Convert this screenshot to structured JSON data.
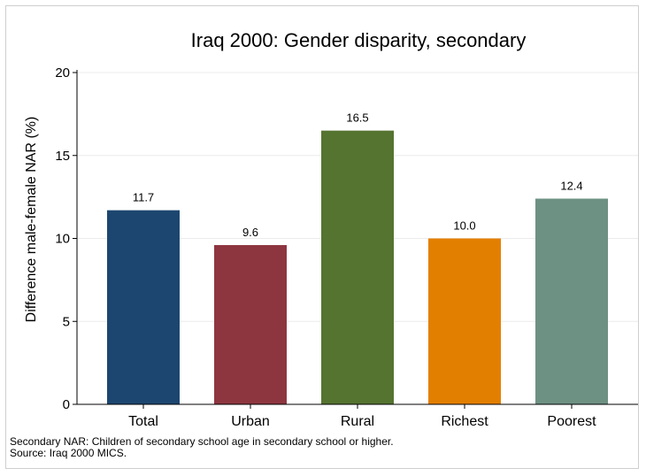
{
  "chart_data": {
    "type": "bar",
    "title": "Iraq 2000: Gender disparity, secondary",
    "ylabel": "Difference male-female NAR (%)",
    "xlabel": "",
    "categories": [
      "Total",
      "Urban",
      "Rural",
      "Richest",
      "Poorest"
    ],
    "values": [
      11.7,
      9.6,
      16.5,
      10.0,
      12.4
    ],
    "value_labels": [
      "11.7",
      "9.6",
      "16.5",
      "10.0",
      "12.4"
    ],
    "colors": [
      "#1c4670",
      "#8e3640",
      "#557430",
      "#e37f00",
      "#6d9183"
    ],
    "ylim": [
      0,
      20
    ],
    "yticks": [
      0,
      5,
      10,
      15,
      20
    ],
    "grid": true,
    "legend": "none"
  },
  "notes": {
    "line1": "Secondary NAR: Children of secondary school age in secondary school or higher.",
    "line2": "Source: Iraq 2000 MICS."
  }
}
